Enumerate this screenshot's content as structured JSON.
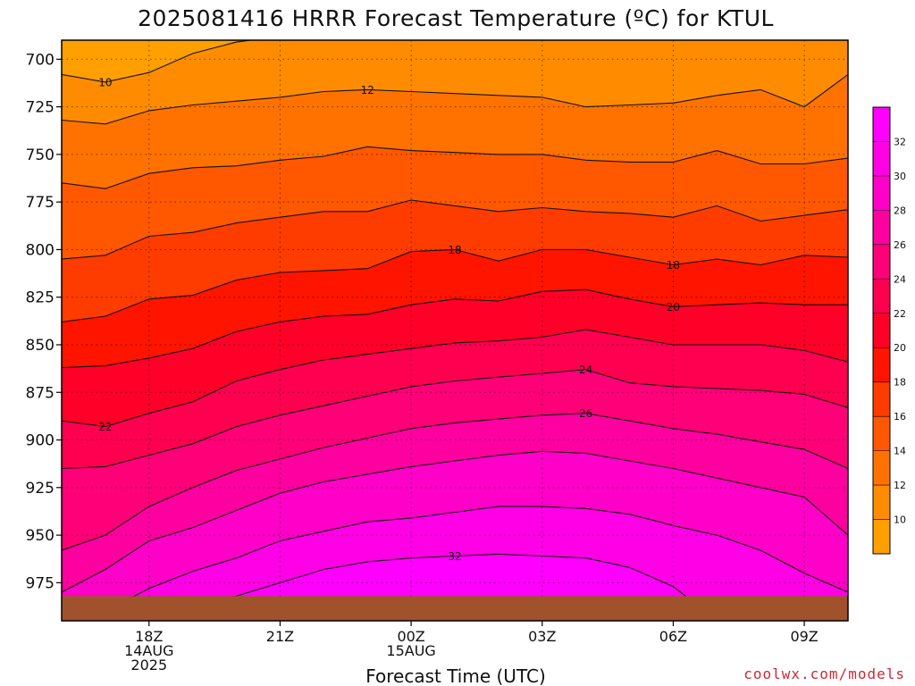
{
  "chart_data": {
    "type": "heatmap",
    "title": "2025081416 HRRR Forecast Temperature (ºC) for KTUL",
    "xlabel": "Forecast Time (UTC)",
    "credit": "coolwx.com/models",
    "y_axis": {
      "quantity": "pressure_hPa",
      "range": [
        690,
        995
      ],
      "inverted": true,
      "ticks": [
        700,
        725,
        750,
        775,
        800,
        825,
        850,
        875,
        900,
        925,
        950,
        975
      ],
      "tick_labels": [
        "700",
        "725",
        "750",
        "775",
        "800",
        "825",
        "850",
        "875",
        "900",
        "925",
        "950",
        "975"
      ]
    },
    "x_axis": {
      "quantity": "forecast_time_utc",
      "range": [
        "2025-08-14T16:00Z",
        "2025-08-15T10:00Z"
      ],
      "ticks": [
        {
          "time": "2025-08-14T18:00Z",
          "lines": [
            "18Z",
            "14AUG",
            "2025"
          ]
        },
        {
          "time": "2025-08-14T21:00Z",
          "lines": [
            "21Z"
          ]
        },
        {
          "time": "2025-08-15T00:00Z",
          "lines": [
            "00Z",
            "15AUG"
          ]
        },
        {
          "time": "2025-08-15T03:00Z",
          "lines": [
            "03Z"
          ]
        },
        {
          "time": "2025-08-15T06:00Z",
          "lines": [
            "06Z"
          ]
        },
        {
          "time": "2025-08-15T09:00Z",
          "lines": [
            "09Z"
          ]
        }
      ]
    },
    "grid": true,
    "times": [
      "2025-08-14T16:00Z",
      "2025-08-14T17:00Z",
      "2025-08-14T18:00Z",
      "2025-08-14T19:00Z",
      "2025-08-14T20:00Z",
      "2025-08-14T21:00Z",
      "2025-08-14T22:00Z",
      "2025-08-14T23:00Z",
      "2025-08-15T00:00Z",
      "2025-08-15T01:00Z",
      "2025-08-15T02:00Z",
      "2025-08-15T03:00Z",
      "2025-08-15T04:00Z",
      "2025-08-15T05:00Z",
      "2025-08-15T06:00Z",
      "2025-08-15T07:00Z",
      "2025-08-15T08:00Z",
      "2025-08-15T09:00Z",
      "2025-08-15T10:00Z"
    ],
    "surface_pressure_hPa": 982,
    "colorbar": {
      "levels": [
        10,
        12,
        14,
        16,
        18,
        20,
        22,
        24,
        26,
        28,
        30,
        32
      ],
      "labels": [
        "10",
        "12",
        "14",
        "16",
        "18",
        "20",
        "22",
        "24",
        "26",
        "28",
        "30",
        "32"
      ],
      "colors": [
        "#ffa000",
        "#ff8c00",
        "#ff7200",
        "#ff5800",
        "#ff3c00",
        "#ff1400",
        "#ff0028",
        "#ff0050",
        "#ff0078",
        "#ff00a0",
        "#ff00c8",
        "#ff00e6",
        "#ff00ff"
      ]
    },
    "isotherms": [
      {
        "value": 10,
        "label": "10",
        "pressures": [
          708,
          712,
          707,
          697,
          691,
          688,
          688,
          686,
          682,
          678,
          674,
          670,
          666,
          663,
          660,
          657,
          654,
          651,
          648
        ]
      },
      {
        "value": 12,
        "label": "12",
        "pressures": [
          732,
          734,
          727,
          724,
          722,
          720,
          717,
          716,
          717,
          718,
          719,
          720,
          725,
          724,
          723,
          719,
          716,
          725,
          708
        ]
      },
      {
        "value": 14,
        "label": "14",
        "pressures": [
          765,
          768,
          760,
          757,
          756,
          753,
          751,
          746,
          748,
          749,
          750,
          750,
          753,
          754,
          754,
          748,
          755,
          755,
          752
        ]
      },
      {
        "value": 16,
        "label": "16",
        "pressures": [
          805,
          803,
          793,
          791,
          786,
          783,
          780,
          780,
          774,
          777,
          780,
          778,
          780,
          781,
          783,
          777,
          785,
          782,
          779
        ]
      },
      {
        "value": 18,
        "label": "18",
        "pressures": [
          838,
          835,
          826,
          824,
          816,
          812,
          811,
          810,
          801,
          800,
          806,
          800,
          800,
          804,
          808,
          805,
          808,
          803,
          804
        ]
      },
      {
        "value": 20,
        "label": "20",
        "pressures": [
          862,
          861,
          857,
          852,
          843,
          838,
          835,
          834,
          829,
          826,
          827,
          822,
          821,
          826,
          830,
          829,
          828,
          829,
          829
        ]
      },
      {
        "value": 22,
        "label": "22",
        "pressures": [
          890,
          893,
          886,
          880,
          869,
          863,
          858,
          855,
          852,
          849,
          848,
          846,
          842,
          846,
          850,
          850,
          850,
          853,
          859
        ]
      },
      {
        "value": 24,
        "label": "24",
        "pressures": [
          915,
          914,
          908,
          902,
          893,
          887,
          882,
          877,
          872,
          869,
          867,
          865,
          863,
          870,
          872,
          873,
          874,
          876,
          883
        ]
      },
      {
        "value": 26,
        "label": "26",
        "pressures": [
          958,
          950,
          935,
          925,
          916,
          910,
          904,
          899,
          894,
          891,
          889,
          887,
          886,
          890,
          894,
          897,
          901,
          905,
          915
        ]
      },
      {
        "value": 28,
        "label": "28",
        "pressures": [
          980,
          968,
          953,
          946,
          937,
          928,
          922,
          918,
          914,
          911,
          908,
          906,
          907,
          911,
          915,
          920,
          925,
          930,
          950
        ]
      },
      {
        "value": 30,
        "label": "30",
        "pressures": [
          995,
          990,
          978,
          969,
          962,
          953,
          948,
          943,
          941,
          938,
          935,
          935,
          936,
          939,
          945,
          950,
          958,
          970,
          980
        ]
      },
      {
        "value": 32,
        "label": "32",
        "pressures": [
          995,
          995,
          995,
          990,
          982,
          975,
          968,
          964,
          962,
          961,
          960,
          961,
          962,
          967,
          977,
          995,
          995,
          995,
          995
        ]
      }
    ]
  }
}
